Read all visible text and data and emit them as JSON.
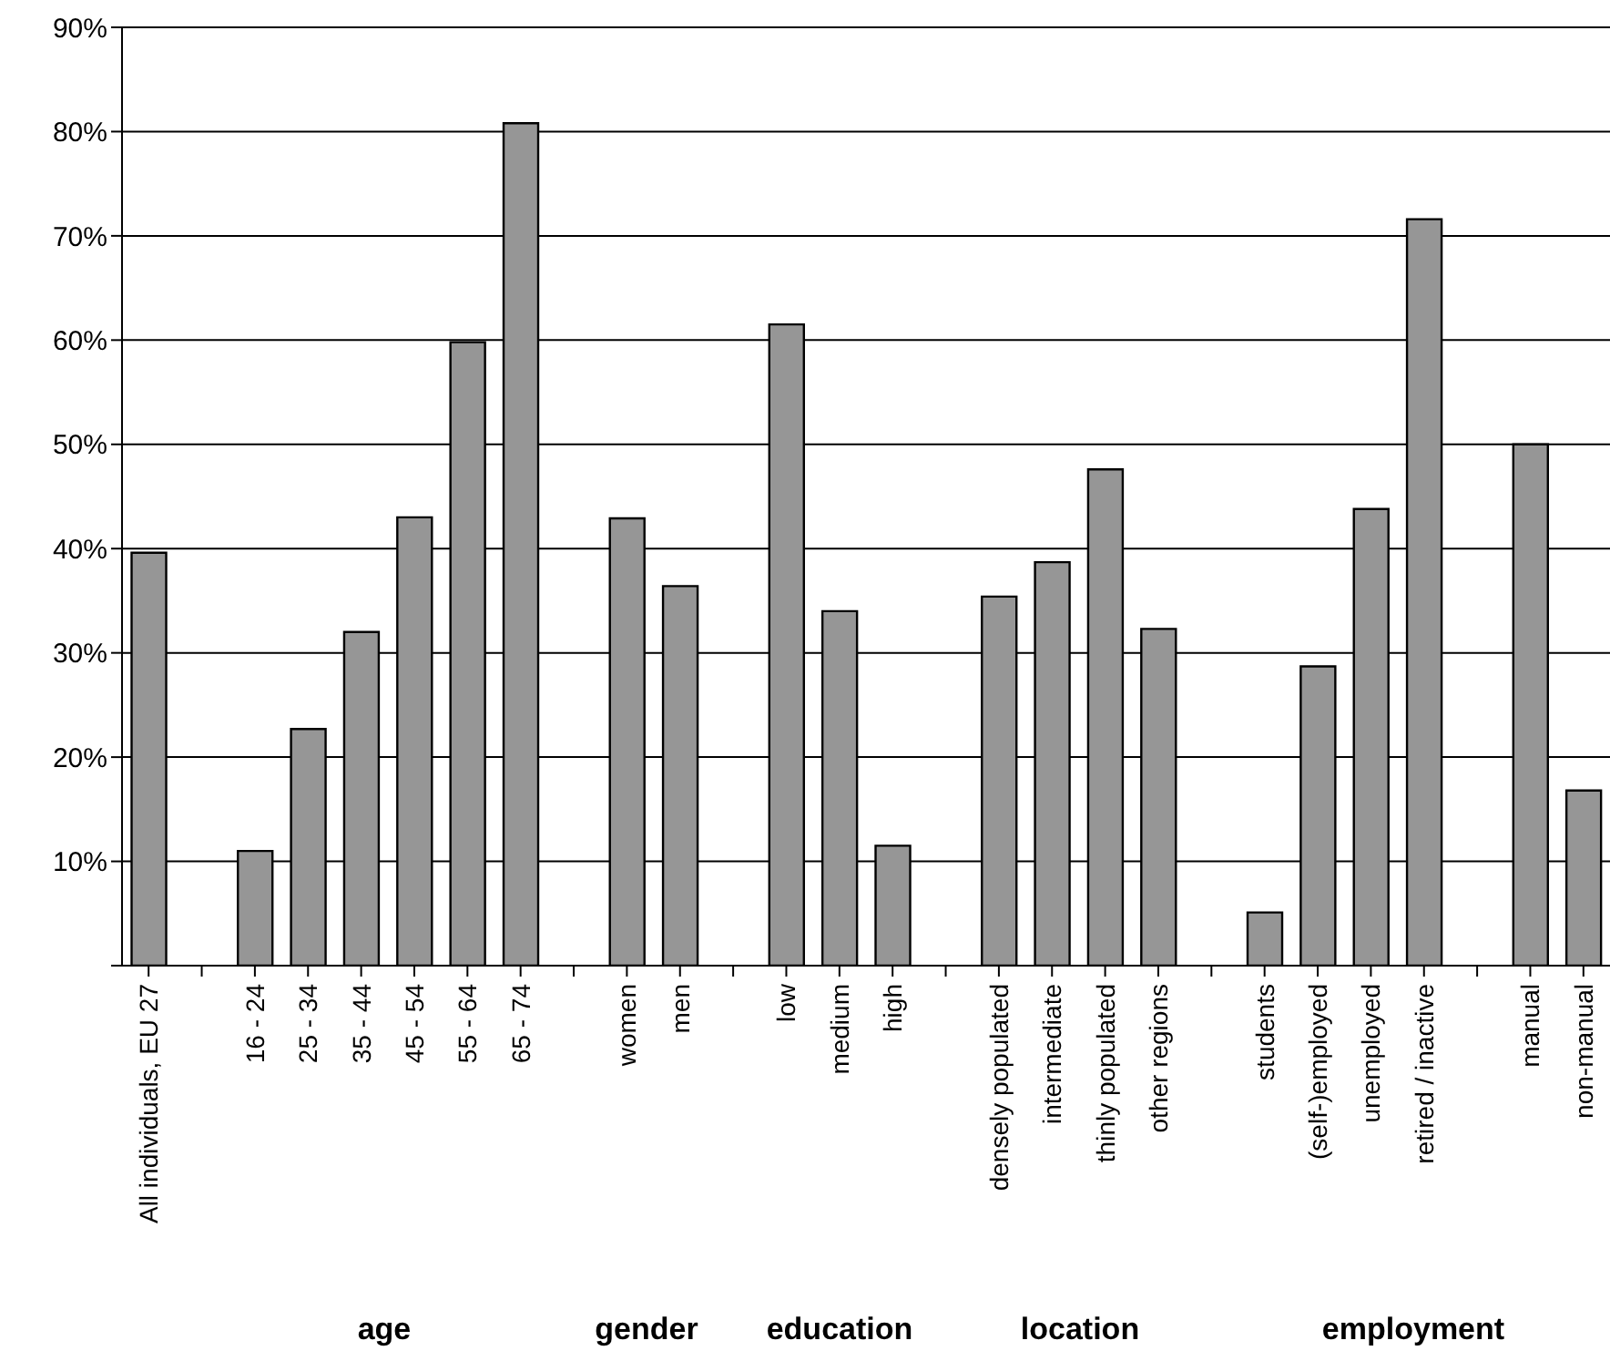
{
  "chart_data": {
    "type": "bar",
    "categories": [
      "All individuals, EU 27",
      null,
      "16 - 24",
      "25 - 34",
      "35 - 44",
      "45 - 54",
      "55 - 64",
      "65 - 74",
      null,
      "women",
      "men",
      null,
      "low",
      "medium",
      "high",
      null,
      "densely populated",
      "intermediate",
      "thinly populated",
      "other regions",
      null,
      "students",
      "(self-)employed",
      "unemployed",
      "retired / inactive",
      null,
      "manual",
      "non-manual"
    ],
    "values": [
      39.6,
      null,
      11.0,
      22.7,
      32.0,
      43.0,
      59.8,
      80.8,
      null,
      42.9,
      36.4,
      null,
      61.5,
      34.0,
      11.5,
      null,
      35.4,
      38.7,
      47.6,
      32.3,
      null,
      5.1,
      28.7,
      43.8,
      71.6,
      null,
      50.0,
      16.8
    ],
    "color": "#969696",
    "ylim": [
      0,
      90
    ],
    "yticks": [
      {
        "value": 0,
        "label": null
      },
      {
        "value": 10,
        "label": "10%"
      },
      {
        "value": 20,
        "label": "20%"
      },
      {
        "value": 30,
        "label": "30%"
      },
      {
        "value": 40,
        "label": "40%"
      },
      {
        "value": 50,
        "label": "50%"
      },
      {
        "value": 60,
        "label": "60%"
      },
      {
        "value": 70,
        "label": "70%"
      },
      {
        "value": 80,
        "label": "80%"
      },
      {
        "value": 90,
        "label": "90%"
      }
    ],
    "grid": "y",
    "annotations": [
      "age",
      "gender",
      "education",
      "location",
      "employment"
    ]
  }
}
